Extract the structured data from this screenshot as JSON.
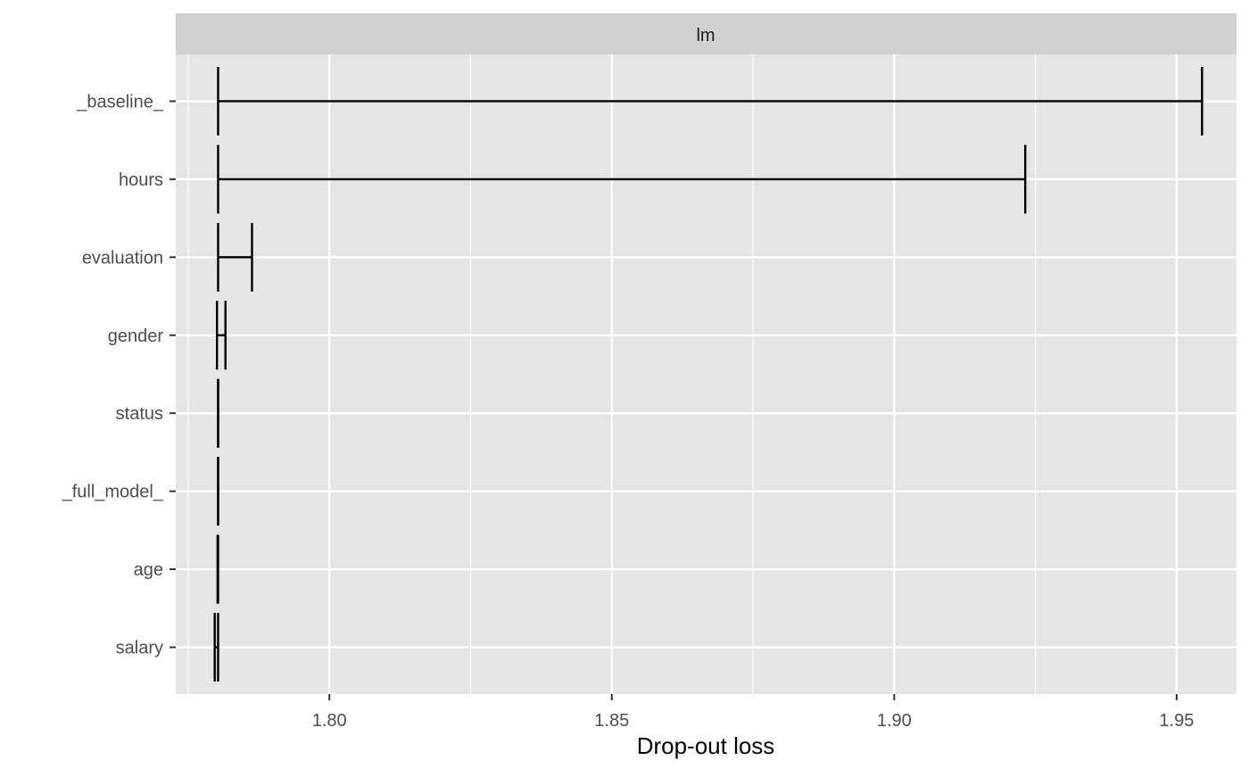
{
  "chart_data": {
    "type": "errorbar",
    "facet_label": "lm",
    "xlabel": "Drop-out loss",
    "ylabel": "",
    "xlim": [
      1.7728,
      1.9606
    ],
    "x_ticks": [
      1.8,
      1.85,
      1.9,
      1.95
    ],
    "x_tick_labels": [
      "1.80",
      "1.85",
      "1.90",
      "1.95"
    ],
    "grid": true,
    "categories": [
      "_baseline_",
      "hours",
      "evaluation",
      "gender",
      "status",
      "_full_model_",
      "age",
      "salary"
    ],
    "intervals": [
      {
        "variable": "_baseline_",
        "from": 1.7803,
        "to": 1.9545
      },
      {
        "variable": "hours",
        "from": 1.7803,
        "to": 1.9232
      },
      {
        "variable": "evaluation",
        "from": 1.7803,
        "to": 1.7863
      },
      {
        "variable": "gender",
        "from": 1.7801,
        "to": 1.7816
      },
      {
        "variable": "status",
        "from": 1.7803,
        "to": 1.7803
      },
      {
        "variable": "_full_model_",
        "from": 1.7803,
        "to": 1.7803
      },
      {
        "variable": "age",
        "from": 1.7802,
        "to": 1.7803
      },
      {
        "variable": "salary",
        "from": 1.7797,
        "to": 1.7803
      }
    ],
    "colors": {
      "panel_background": "#e5e5e5",
      "strip_background": "#d0d0d0",
      "grid": "#ffffff",
      "marks": "#000000",
      "text": "#333333",
      "axis_title": "#000000"
    }
  }
}
